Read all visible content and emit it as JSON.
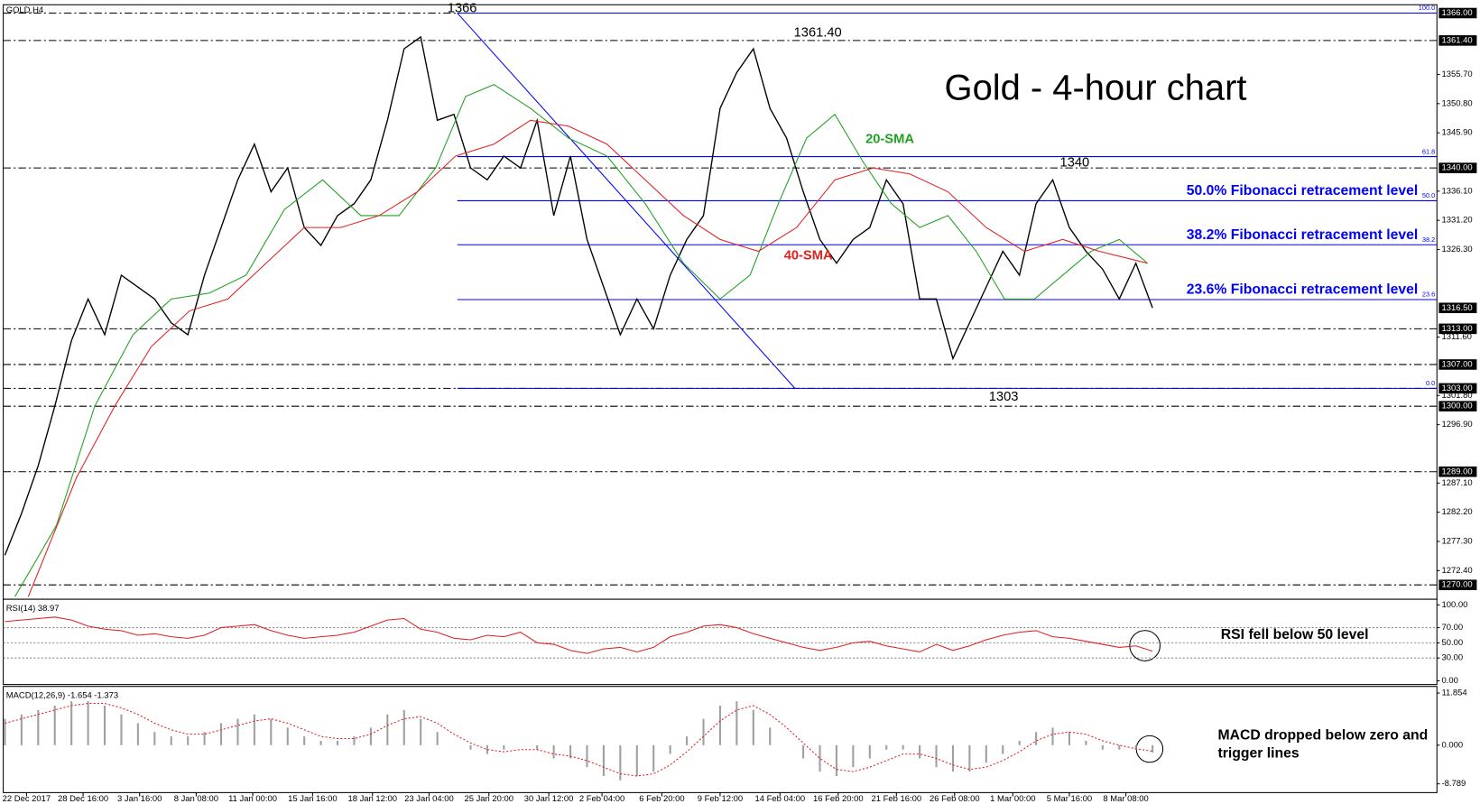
{
  "chart_data": [
    {
      "type": "line",
      "title": "Gold - 4-hour chart",
      "symbol": "GOLD,H4",
      "xlim": [
        -0.1,
        86.1
      ],
      "ylim": [
        1267.6,
        1367.4
      ],
      "yticks": [
        {
          "value": 1355.7,
          "label": "1355.70"
        },
        {
          "value": 1350.8,
          "label": "1350.80"
        },
        {
          "value": 1345.9,
          "label": "1345.90"
        },
        {
          "value": 1336.1,
          "label": "1336.10"
        },
        {
          "value": 1331.2,
          "label": "1331.20"
        },
        {
          "value": 1326.3,
          "label": "1326.30"
        },
        {
          "value": 1311.6,
          "label": "1311.60"
        },
        {
          "value": 1301.8,
          "label": "1301.80"
        },
        {
          "value": 1296.9,
          "label": "1296.90"
        },
        {
          "value": 1287.1,
          "label": "1287.10"
        },
        {
          "value": 1282.2,
          "label": "1282.20"
        },
        {
          "value": 1277.3,
          "label": "1277.30"
        },
        {
          "value": 1272.4,
          "label": "1272.40"
        }
      ],
      "levels": [
        {
          "value": 1366,
          "label": "1366.00"
        },
        {
          "value": 1361.4,
          "label": "1361.40"
        },
        {
          "value": 1340,
          "label": "1340.00"
        },
        {
          "value": 1313,
          "label": "1313.00"
        },
        {
          "value": 1307,
          "label": "1307.00"
        },
        {
          "value": 1303,
          "label": "1303.00"
        },
        {
          "value": 1300,
          "label": "1300.00"
        },
        {
          "value": 1289,
          "label": "1289.00"
        },
        {
          "value": 1270,
          "label": "1270.00"
        }
      ],
      "last_price": {
        "value": 1316.5,
        "label": "1316.50"
      },
      "fibonacci": {
        "start_x": 27.2,
        "levels": [
          {
            "value": 1366,
            "label": "100.0"
          },
          {
            "value": 1341.9,
            "label": "61.8"
          },
          {
            "value": 1334.5,
            "label": "50.0",
            "note": "50.0% Fibonacci retracement level"
          },
          {
            "value": 1327.1,
            "label": "38.2",
            "note": "38.2% Fibonacci retracement level"
          },
          {
            "value": 1317.9,
            "label": "23.6",
            "note": "23.6% Fibonacci retracement level"
          },
          {
            "value": 1303,
            "label": "0.0"
          }
        ]
      },
      "trendline": {
        "x": [
          27.2,
          47.5
        ],
        "values": [
          1366,
          1303
        ],
        "color": "#0000ff"
      },
      "annotations": [
        "1366",
        "1361.40",
        "1340",
        "1303",
        "20-SMA",
        "40-SMA"
      ],
      "series": [
        {
          "color": "#000000",
          "values": [
            1275,
            1282,
            1290,
            1300,
            1311,
            1318,
            1312,
            1322,
            1320,
            1318,
            1314,
            1312,
            1322,
            1330,
            1338,
            1344,
            1336,
            1340,
            1330,
            1327,
            1332,
            1334,
            1338,
            1348,
            1360,
            1362,
            1348,
            1349,
            1340,
            1338,
            1342,
            1340,
            1348,
            1332,
            1342,
            1328,
            1320,
            1312,
            1318,
            1313,
            1322,
            1328,
            1332,
            1350,
            1356,
            1360,
            1350,
            1345,
            1336,
            1328,
            1324,
            1328,
            1330,
            1338,
            1334,
            1318,
            1318,
            1308,
            1314,
            1320,
            1326,
            1322,
            1334,
            1338,
            1330,
            1326,
            1323,
            1318,
            1324,
            1316.5
          ]
        },
        {
          "name": "20-SMA",
          "color": "#1fa01f",
          "x": [
            0.6,
            3.1,
            5.4,
            7.7,
            10.0,
            12.3,
            14.5,
            16.8,
            19.1,
            21.4,
            23.7,
            25.9,
            27.7,
            29.4,
            31.6,
            33.9,
            36.2,
            38.5,
            40.8,
            43.0,
            44.8,
            46.5,
            48.2,
            49.9,
            51.6,
            53.3,
            55.0,
            56.7,
            58.4,
            60.1,
            61.9,
            63.6,
            65.3,
            67.0,
            68.7
          ],
          "values": [
            1268,
            1280,
            1300,
            1312,
            1318,
            1319,
            1322,
            1333,
            1338,
            1332,
            1332,
            1340,
            1352,
            1354,
            1350,
            1345,
            1342,
            1334,
            1324,
            1318,
            1322,
            1334,
            1345,
            1349,
            1341,
            1334,
            1330,
            1332,
            1326,
            1318,
            1318,
            1322,
            1326,
            1328,
            1324
          ]
        },
        {
          "name": "40-SMA",
          "color": "#e02020",
          "x": [
            1.4,
            4.3,
            6.6,
            8.8,
            11.1,
            13.4,
            15.7,
            18.0,
            20.2,
            22.5,
            24.8,
            27.1,
            29.4,
            31.6,
            33.9,
            36.2,
            38.5,
            40.8,
            43.0,
            45.3,
            47.6,
            49.9,
            52.2,
            54.4,
            56.7,
            59.0,
            61.3,
            63.6,
            65.8,
            68.7
          ],
          "values": [
            1268,
            1288,
            1300,
            1310,
            1316,
            1318,
            1324,
            1330,
            1330,
            1332,
            1336,
            1342,
            1344,
            1348,
            1347,
            1344,
            1338,
            1332,
            1328,
            1326,
            1330,
            1338,
            1340,
            1339,
            1336,
            1330,
            1326,
            1328,
            1326,
            1324
          ]
        }
      ]
    },
    {
      "type": "line",
      "title": "RSI(14) 38.97",
      "xlim": [
        -0.1,
        86.1
      ],
      "ylim": [
        -5,
        107.5
      ],
      "yticks": [
        {
          "value": 100,
          "label": "100.00"
        },
        {
          "value": 70,
          "label": "70.00"
        },
        {
          "value": 50,
          "label": "50.00"
        },
        {
          "value": 30,
          "label": "30.00"
        },
        {
          "value": 0,
          "label": "0.00"
        }
      ],
      "grid_levels": [
        70,
        50,
        30
      ],
      "annotations": [
        "RSI fell below 50 level"
      ],
      "series": [
        {
          "color": "#e02020",
          "values": [
            78,
            80,
            82,
            84,
            80,
            72,
            68,
            66,
            60,
            62,
            58,
            56,
            60,
            70,
            72,
            74,
            66,
            60,
            56,
            58,
            60,
            64,
            72,
            80,
            82,
            68,
            64,
            56,
            54,
            60,
            58,
            64,
            50,
            48,
            40,
            36,
            42,
            44,
            38,
            44,
            58,
            64,
            72,
            74,
            70,
            62,
            56,
            50,
            44,
            40,
            44,
            50,
            52,
            46,
            42,
            38,
            48,
            40,
            46,
            54,
            60,
            64,
            66,
            58,
            56,
            52,
            48,
            44,
            46,
            38.97
          ]
        }
      ]
    },
    {
      "type": "bar",
      "title": "MACD(12,26,9) -1.654 -1.373",
      "xlim": [
        -0.1,
        86.1
      ],
      "ylim": [
        -10.78,
        13.36
      ],
      "yticks": [
        11.854,
        {
          "value": 0,
          "label": "0.000"
        },
        -8.789
      ],
      "annotations": [
        "MACD dropped below zero and",
        "trigger lines"
      ],
      "xticks": [
        {
          "value": 1.3,
          "label": "22 Dec 2017"
        },
        {
          "value": 4.7,
          "label": "28 Dec 16:00"
        },
        {
          "value": 8.1,
          "label": "3 Jan 16:00"
        },
        {
          "value": 11.5,
          "label": "8 Jan 08:00"
        },
        {
          "value": 14.9,
          "label": "11 Jan 00:00"
        },
        {
          "value": 18.5,
          "label": "15 Jan 16:00"
        },
        {
          "value": 22.1,
          "label": "18 Jan 12:00"
        },
        {
          "value": 25.5,
          "label": "23 Jan 04:00"
        },
        {
          "value": 29.1,
          "label": "25 Jan 20:00"
        },
        {
          "value": 32.7,
          "label": "30 Jan 12:00"
        },
        {
          "value": 35.9,
          "label": "2 Feb 04:00"
        },
        {
          "value": 39.5,
          "label": "6 Feb 20:00"
        },
        {
          "value": 43.0,
          "label": "9 Feb 12:00"
        },
        {
          "value": 46.6,
          "label": "14 Feb 04:00"
        },
        {
          "value": 50.1,
          "label": "16 Feb 20:00"
        },
        {
          "value": 53.6,
          "label": "21 Feb 16:00"
        },
        {
          "value": 57.1,
          "label": "26 Feb 08:00"
        },
        {
          "value": 60.6,
          "label": "1 Mar 00:00"
        },
        {
          "value": 64.0,
          "label": "5 Mar 16:00"
        },
        {
          "value": 67.4,
          "label": "8 Mar 08:00"
        }
      ],
      "series": [
        {
          "kind": "bar",
          "color": "#a0a0a0",
          "values": [
            6,
            7,
            8,
            9,
            10,
            10,
            9,
            7,
            5,
            3,
            2,
            2,
            3,
            5,
            6,
            7,
            6,
            4,
            2,
            1,
            1,
            2,
            4,
            7,
            8,
            6,
            3,
            0,
            -1,
            -2,
            -1,
            0,
            -1,
            -3,
            -3,
            -5,
            -7,
            -8,
            -7,
            -6,
            -2,
            2,
            6,
            9,
            10,
            8,
            4,
            0,
            -3,
            -6,
            -7,
            -5,
            -3,
            -1,
            -1,
            -3,
            -5,
            -6,
            -6,
            -4,
            -2,
            1,
            3,
            4,
            3,
            1,
            -1,
            -1,
            -1,
            -1.654
          ]
        },
        {
          "kind": "line",
          "color": "#e02020",
          "values": [
            5,
            6,
            7,
            8,
            9,
            9.5,
            9.5,
            8.5,
            7,
            5,
            3.5,
            2.5,
            2.5,
            3.5,
            4.5,
            5.5,
            6,
            5,
            3.5,
            2,
            1.5,
            1.5,
            2.5,
            4.5,
            6,
            6.5,
            5,
            2.5,
            0.5,
            -1,
            -1.5,
            -1,
            -1,
            -2,
            -2.5,
            -3.5,
            -5,
            -6.5,
            -7,
            -6.5,
            -4.5,
            -1.5,
            2,
            5.5,
            8,
            9,
            7,
            4,
            0.5,
            -3,
            -5.5,
            -6,
            -5,
            -3.5,
            -2,
            -2,
            -3,
            -4.5,
            -5.5,
            -5,
            -3.5,
            -1.5,
            1,
            2.5,
            3,
            2.5,
            1,
            0,
            -0.8,
            -1.373
          ]
        }
      ]
    }
  ]
}
